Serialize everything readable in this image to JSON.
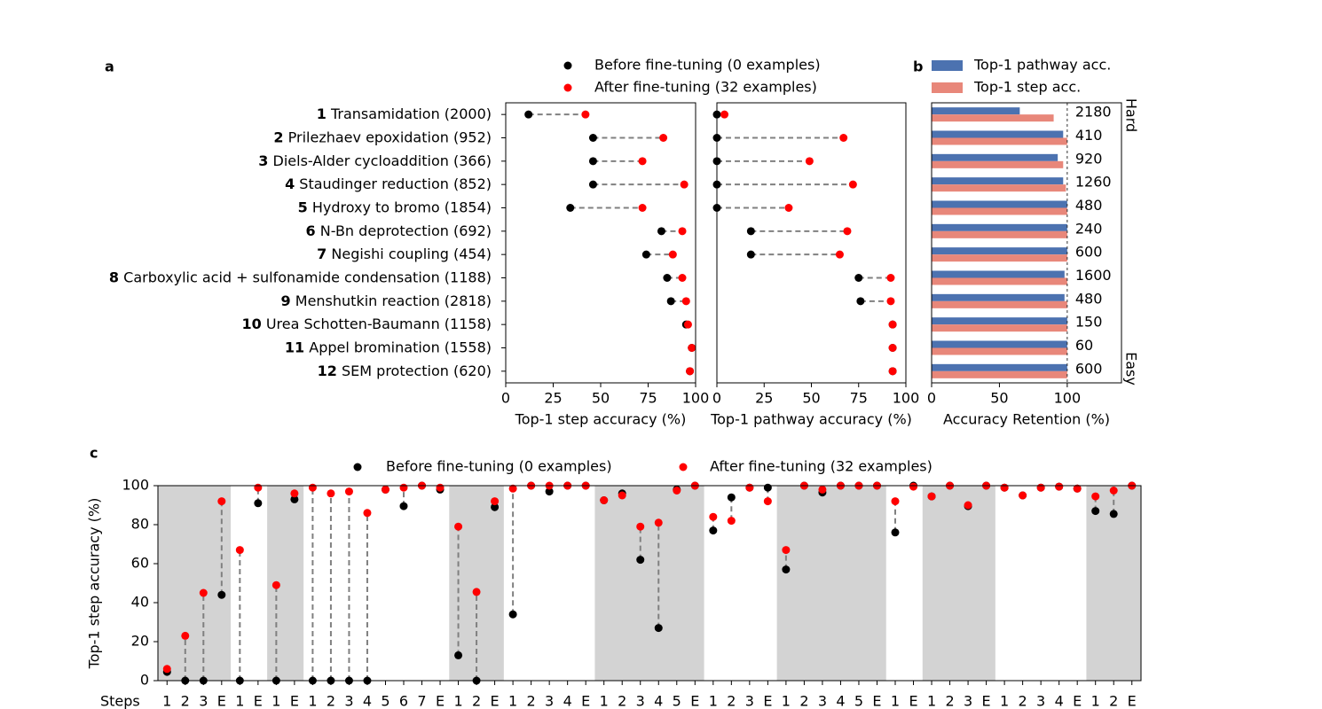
{
  "chart_data": [
    {
      "type": "dumbbell",
      "panel": "a",
      "category_ids": [
        1,
        2,
        3,
        4,
        5,
        6,
        7,
        8,
        9,
        10,
        11,
        12
      ],
      "categories": [
        "Transamidation (2000)",
        "Prilezhaev epoxidation (952)",
        "Diels-Alder cycloaddition (366)",
        "Staudinger reduction (852)",
        "Hydroxy to bromo (1854)",
        "N-Bn deprotection (692)",
        "Negishi coupling (454)",
        "Carboxylic acid + sulfonamide condensation (1188)",
        "Menshutkin reaction (2818)",
        "Urea Schotten-Baumann (1158)",
        "Appel bromination (1558)",
        "SEM protection (620)"
      ],
      "xlabel": "Top-1 step accuracy (%)",
      "xlim": [
        0,
        100
      ],
      "xticks": [
        0,
        25,
        50,
        75,
        100
      ],
      "series": [
        {
          "name": "Before fine-tuning (0 examples)",
          "color": "#000000",
          "values": [
            12,
            46,
            46,
            46,
            34,
            82,
            74,
            85,
            87,
            95,
            98,
            97
          ]
        },
        {
          "name": "After fine-tuning (32 examples)",
          "color": "#ff0000",
          "values": [
            42,
            83,
            72,
            94,
            72,
            93,
            88,
            93,
            95,
            96,
            98,
            97
          ]
        }
      ]
    },
    {
      "type": "dumbbell",
      "xlabel": "Top-1 pathway accuracy (%)",
      "xlim": [
        0,
        100
      ],
      "xticks": [
        0,
        25,
        50,
        75,
        100
      ],
      "series": [
        {
          "color": "#000000",
          "values": [
            0,
            0,
            0,
            0,
            0,
            18,
            18,
            75,
            76,
            93,
            93,
            93
          ]
        },
        {
          "color": "#ff0000",
          "values": [
            4,
            67,
            49,
            72,
            38,
            69,
            65,
            92,
            92,
            93,
            93,
            93
          ]
        }
      ]
    },
    {
      "type": "barh",
      "panel": "b",
      "xlabel": "Accuracy Retention (%)",
      "xlim": [
        0,
        140
      ],
      "xticks": [
        0,
        50,
        100
      ],
      "refline": 100,
      "bar_labels": [
        2180,
        410,
        920,
        1260,
        480,
        240,
        600,
        1600,
        480,
        150,
        60,
        600
      ],
      "annotations": [
        "Hard",
        "Easy"
      ],
      "series": [
        {
          "name": "Top-1 pathway acc.",
          "color": "#4c72b0",
          "values": [
            65,
            97,
            93,
            97,
            100,
            100,
            100,
            98,
            98,
            100,
            100,
            100
          ]
        },
        {
          "name": "Top-1 step acc.",
          "color": "#e8877a",
          "values": [
            90,
            100,
            97,
            99,
            100,
            100,
            100,
            100,
            100,
            100,
            100,
            100
          ]
        }
      ]
    },
    {
      "type": "dumbbell_v",
      "panel": "c",
      "xlabel": "Steps",
      "ylabel": "Top-1 step accuracy (%)",
      "ylim": [
        0,
        100
      ],
      "yticks": [
        0,
        20,
        40,
        60,
        80,
        100
      ],
      "categories": [
        "1",
        "2",
        "3",
        "E",
        "1",
        "E",
        "1",
        "E",
        "1",
        "2",
        "3",
        "4",
        "5",
        "6",
        "7",
        "E",
        "1",
        "2",
        "E",
        "1",
        "2",
        "3",
        "4",
        "E",
        "1",
        "2",
        "3",
        "4",
        "5",
        "E",
        "1",
        "2",
        "3",
        "E",
        "1",
        "2",
        "3",
        "4",
        "5",
        "E",
        "1",
        "E",
        "1",
        "2",
        "3",
        "E",
        "1",
        "2",
        "3",
        "4",
        "E",
        "1",
        "2",
        "E"
      ],
      "series": [
        {
          "name": "Before fine-tuning (0 examples)",
          "color": "#000000",
          "values": [
            4.5,
            0,
            0,
            44,
            0,
            91,
            0,
            93,
            0,
            0,
            0,
            0,
            98,
            89.5,
            100,
            98,
            13,
            0,
            89,
            34,
            100,
            97,
            100,
            100,
            92.5,
            96,
            62,
            27,
            98,
            100,
            77,
            94,
            99,
            99,
            57,
            100,
            96.5,
            100,
            100,
            100,
            76,
            100,
            94.5,
            100,
            89.5,
            100,
            99,
            95,
            99,
            99.5,
            98.5,
            87,
            85.5,
            100
          ]
        },
        {
          "name": "After fine-tuning (32 examples)",
          "color": "#ff0000",
          "values": [
            6,
            23,
            45,
            92,
            67,
            99,
            49,
            96,
            99,
            96,
            97,
            86,
            98,
            99,
            100,
            99,
            79,
            45.5,
            92,
            98.5,
            100,
            100,
            100,
            100,
            92.5,
            95,
            79,
            81,
            97.5,
            100,
            84,
            82,
            99,
            92,
            67,
            100,
            98,
            100,
            100,
            100,
            92,
            99.5,
            94.5,
            100,
            90,
            100,
            99,
            95,
            99,
            99.5,
            98.5,
            94.5,
            97.5,
            100
          ]
        }
      ]
    }
  ]
}
